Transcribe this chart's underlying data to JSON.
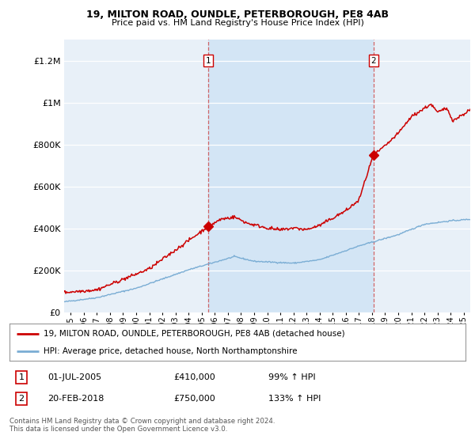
{
  "title1": "19, MILTON ROAD, OUNDLE, PETERBOROUGH, PE8 4AB",
  "title2": "Price paid vs. HM Land Registry's House Price Index (HPI)",
  "ylabel_ticks": [
    "£0",
    "£200K",
    "£400K",
    "£600K",
    "£800K",
    "£1M",
    "£1.2M"
  ],
  "ytick_values": [
    0,
    200000,
    400000,
    600000,
    800000,
    1000000,
    1200000
  ],
  "ylim": [
    0,
    1300000
  ],
  "xlim_start": 1994.5,
  "xlim_end": 2025.5,
  "sale1_x": 2005.5,
  "sale1_y": 410000,
  "sale2_x": 2018.13,
  "sale2_y": 750000,
  "legend_line1": "19, MILTON ROAD, OUNDLE, PETERBOROUGH, PE8 4AB (detached house)",
  "legend_line2": "HPI: Average price, detached house, North Northamptonshire",
  "annotation1_num": "1",
  "annotation1_date": "01-JUL-2005",
  "annotation1_price": "£410,000",
  "annotation1_hpi": "99% ↑ HPI",
  "annotation2_num": "2",
  "annotation2_date": "20-FEB-2018",
  "annotation2_price": "£750,000",
  "annotation2_hpi": "133% ↑ HPI",
  "footer": "Contains HM Land Registry data © Crown copyright and database right 2024.\nThis data is licensed under the Open Government Licence v3.0.",
  "hpi_color": "#7aadd4",
  "price_color": "#cc0000",
  "sale_dot_color": "#cc0000",
  "background_plot": "#e8f0f8",
  "background_between": "#d0e4f5",
  "background_fig": "#ffffff",
  "grid_color": "#cccccc",
  "xticks": [
    1995,
    1996,
    1997,
    1998,
    1999,
    2000,
    2001,
    2002,
    2003,
    2004,
    2005,
    2006,
    2007,
    2008,
    2009,
    2010,
    2011,
    2012,
    2013,
    2014,
    2015,
    2016,
    2017,
    2018,
    2019,
    2020,
    2021,
    2022,
    2023,
    2024,
    2025
  ]
}
